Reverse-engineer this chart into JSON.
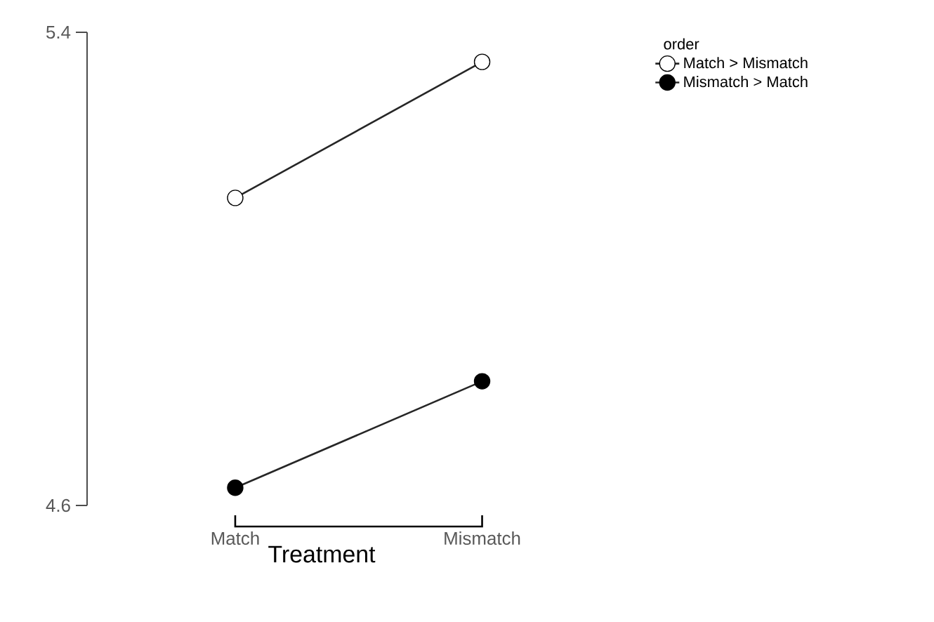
{
  "chart_data": {
    "type": "line",
    "xlabel": "Treatment",
    "legend_title": "order",
    "categories": [
      "Match",
      "Mismatch"
    ],
    "series": [
      {
        "name": "Match > Mismatch",
        "color": "#ffffff",
        "values": [
          5.12,
          5.35
        ]
      },
      {
        "name": "Mismatch > Match",
        "color": "#000000",
        "values": [
          4.63,
          4.81
        ]
      }
    ],
    "ylim": [
      4.6,
      5.4
    ],
    "yticks": [
      4.6,
      5.4
    ],
    "grid": false,
    "legend": "top right",
    "marker": "circle",
    "line_style": "solid"
  }
}
